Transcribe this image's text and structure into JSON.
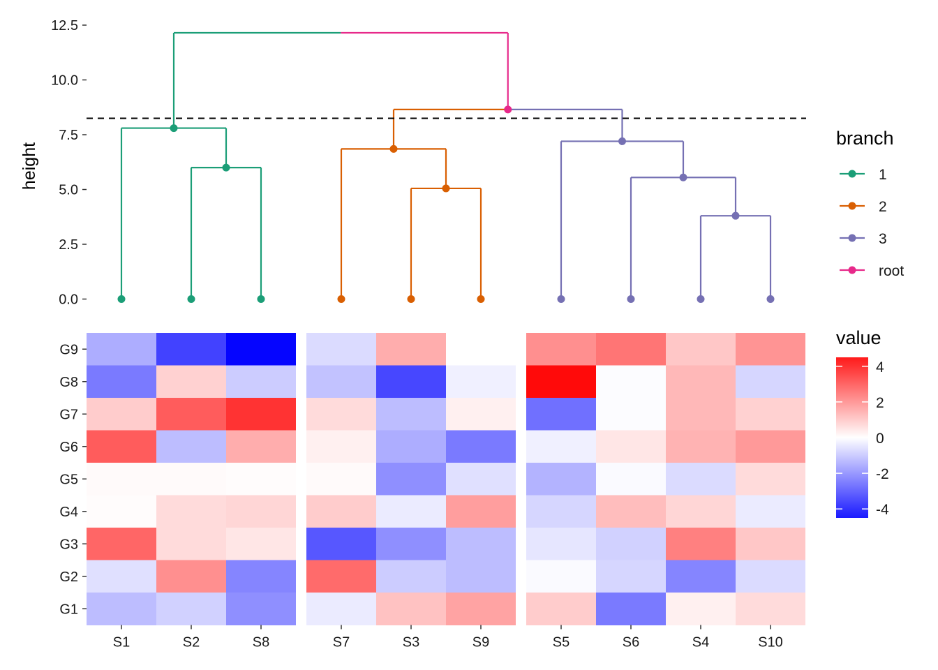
{
  "chart_data": [
    {
      "type": "dendrogram",
      "ylabel": "height",
      "yticks": [
        "0.0",
        "2.5",
        "5.0",
        "7.5",
        "10.0",
        "12.5"
      ],
      "ylim": [
        0,
        12.8
      ],
      "cut_height": 8.25,
      "leaves": [
        "S1",
        "S2",
        "S8",
        "S7",
        "S3",
        "S9",
        "S5",
        "S6",
        "S4",
        "S10"
      ],
      "merges": [
        {
          "branch": "1",
          "children": [
            "S2",
            "S8"
          ],
          "height": 6.0
        },
        {
          "branch": "1",
          "children": [
            "S1",
            "(S2,S8)"
          ],
          "height": 7.8
        },
        {
          "branch": "2",
          "children": [
            "S3",
            "S9"
          ],
          "height": 5.05
        },
        {
          "branch": "2",
          "children": [
            "S7",
            "(S3,S9)"
          ],
          "height": 6.85
        },
        {
          "branch": "3",
          "children": [
            "S4",
            "S10"
          ],
          "height": 3.8
        },
        {
          "branch": "3",
          "children": [
            "S6",
            "(S4,S10)"
          ],
          "height": 5.55
        },
        {
          "branch": "3",
          "children": [
            "S5",
            "(S6,S4,S10)"
          ],
          "height": 7.2
        },
        {
          "branch": "root",
          "children": [
            "cluster 2",
            "cluster 3"
          ],
          "height": 8.65
        },
        {
          "branch": "root",
          "children": [
            "cluster 1",
            "(cluster 2, cluster 3)"
          ],
          "height": 12.15
        }
      ],
      "legend": {
        "title": "branch",
        "entries": [
          {
            "label": "1",
            "color": "#1b9e77"
          },
          {
            "label": "2",
            "color": "#d95f02"
          },
          {
            "label": "3",
            "color": "#7570b3"
          },
          {
            "label": "root",
            "color": "#e7298a"
          }
        ]
      }
    },
    {
      "type": "heatmap",
      "rows": [
        "G1",
        "G2",
        "G3",
        "G4",
        "G5",
        "G6",
        "G7",
        "G8",
        "G9"
      ],
      "columns": [
        "S1",
        "S2",
        "S8",
        "S7",
        "S3",
        "S9",
        "S5",
        "S6",
        "S4",
        "S10"
      ],
      "column_groups": [
        [
          "S1",
          "S2",
          "S8"
        ],
        [
          "S7",
          "S3",
          "S9"
        ],
        [
          "S5",
          "S6",
          "S4",
          "S10"
        ]
      ],
      "values": {
        "G9": [
          -1.6,
          -3.7,
          -4.9,
          -0.7,
          1.6,
          0.0,
          2.2,
          2.7,
          1.1,
          2.1
        ],
        "G8": [
          -2.6,
          0.9,
          -1.0,
          -1.2,
          -3.6,
          -0.3,
          4.8,
          -0.05,
          1.4,
          -0.8
        ],
        "G7": [
          1.0,
          3.2,
          4.0,
          0.7,
          -1.3,
          0.3,
          -2.8,
          -0.05,
          1.4,
          0.9
        ],
        "G6": [
          3.2,
          -1.3,
          1.6,
          0.3,
          -1.6,
          -2.6,
          -0.3,
          0.5,
          1.5,
          2.0
        ],
        "G5": [
          0.1,
          0.1,
          0.05,
          0.1,
          -2.2,
          -0.6,
          -1.5,
          -0.1,
          -0.7,
          0.7
        ],
        "G4": [
          0.05,
          0.7,
          0.8,
          1.0,
          -0.4,
          1.9,
          -0.8,
          1.3,
          0.8,
          -0.4
        ],
        "G3": [
          3.0,
          0.7,
          0.5,
          -3.3,
          -2.2,
          -1.3,
          -0.5,
          -0.9,
          2.5,
          1.1
        ],
        "G2": [
          -0.6,
          2.2,
          -2.4,
          2.9,
          -1.0,
          -1.3,
          -0.1,
          -0.8,
          -2.4,
          -0.7
        ],
        "G1": [
          -1.3,
          -0.9,
          -2.2,
          -0.4,
          1.2,
          1.8,
          1.0,
          -2.6,
          0.3,
          0.7
        ]
      },
      "color_scale": {
        "low": "#0000ff",
        "mid": "#ffffff",
        "high": "#ff0000",
        "domain": [
          -5,
          0,
          5
        ]
      },
      "legend": {
        "title": "value",
        "ticks": [
          "4",
          "2",
          "0",
          "-2",
          "-4"
        ]
      }
    }
  ]
}
